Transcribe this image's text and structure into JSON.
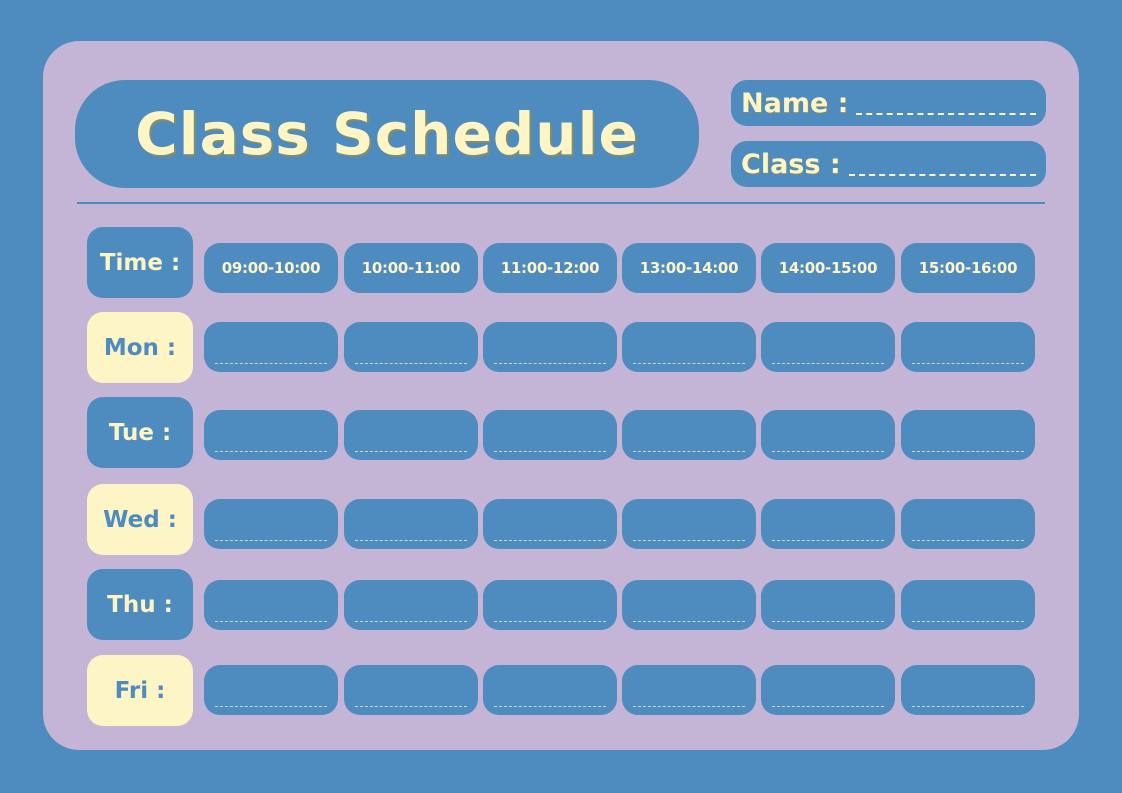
{
  "title": "Class Schedule",
  "fields": {
    "name_label": "Name :",
    "class_label": "Class :"
  },
  "colors": {
    "background": "#4e8bbf",
    "card": "#c4b4d6",
    "accent_cream": "#fdf5c6"
  },
  "time_label": "Time :",
  "times": [
    "09:00-10:00",
    "10:00-11:00",
    "11:00-12:00",
    "13:00-14:00",
    "14:00-15:00",
    "15:00-16:00"
  ],
  "days": [
    "Mon :",
    "Tue :",
    "Wed :",
    "Thu :",
    "Fri :"
  ]
}
